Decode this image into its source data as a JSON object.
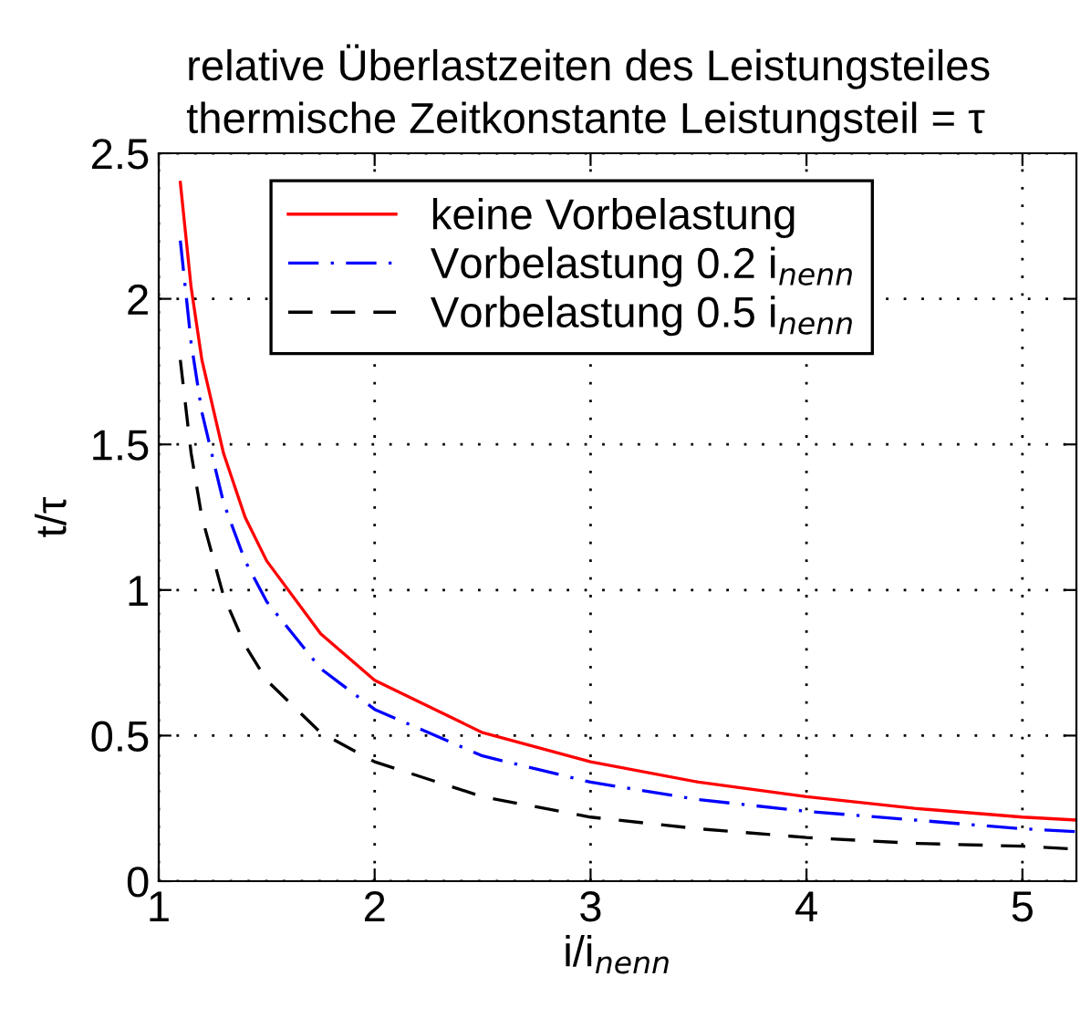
{
  "chart_data": {
    "type": "line",
    "title": "relative Überlastzeiten des Leistungsteiles\nthermische Zeitkonstante Leistungsteil = τ",
    "xlabel": "i/i$_{nenn}$",
    "ylabel": "t/τ",
    "x": [
      1.1,
      1.15,
      1.2,
      1.3,
      1.4,
      1.5,
      1.75,
      2,
      2.5,
      3,
      3.5,
      4,
      4.5,
      5,
      5.25
    ],
    "series": [
      {
        "name": "keine Vorbelastung",
        "color": "#ff0000",
        "line_style": "solid",
        "values": [
          2.4,
          2.04,
          1.79,
          1.47,
          1.25,
          1.1,
          0.85,
          0.69,
          0.51,
          0.41,
          0.34,
          0.29,
          0.25,
          0.22,
          0.21
        ]
      },
      {
        "name": "Vorbelastung 0.2 i$_{nenn}$",
        "color": "#0000ff",
        "line_style": "dashdot",
        "values": [
          2.2,
          1.85,
          1.61,
          1.3,
          1.1,
          0.96,
          0.73,
          0.59,
          0.43,
          0.34,
          0.28,
          0.24,
          0.21,
          0.18,
          0.17
        ]
      },
      {
        "name": "Vorbelastung 0.5 i$_{nenn}$",
        "color": "#000000",
        "line_style": "dashed",
        "values": [
          1.79,
          1.47,
          1.25,
          0.98,
          0.81,
          0.69,
          0.51,
          0.41,
          0.29,
          0.22,
          0.18,
          0.15,
          0.13,
          0.12,
          0.11
        ]
      }
    ],
    "xlim": [
      1,
      5.25
    ],
    "xticks": [
      1,
      2,
      3,
      4,
      5
    ],
    "ylim": [
      0,
      2.5
    ],
    "yticks": [
      0,
      {
        "value": 0.5,
        "label": "0.5"
      },
      1,
      {
        "value": 1.5,
        "label": "1.5"
      },
      2,
      {
        "value": 2.5,
        "label": "2.5"
      }
    ],
    "grid": true,
    "legend": "top",
    "marker": "none"
  }
}
